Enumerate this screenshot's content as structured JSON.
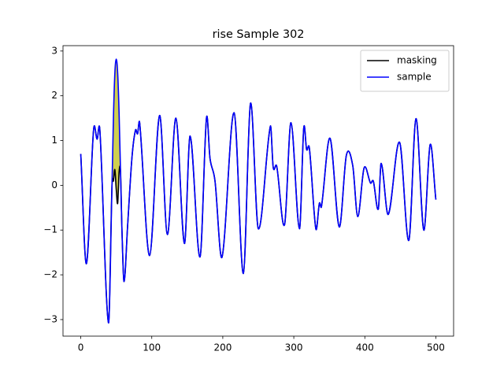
{
  "chart_data": {
    "type": "line",
    "title": "rise Sample 302",
    "x": [
      0,
      8,
      18,
      23,
      27,
      39,
      44,
      46,
      48,
      50,
      52,
      54,
      56,
      58,
      61,
      66,
      72,
      77,
      80,
      83,
      97,
      111,
      122,
      134,
      146,
      154,
      168,
      177,
      182,
      189,
      199,
      216,
      229,
      239,
      250,
      267,
      271,
      276,
      287,
      296,
      308,
      314,
      318,
      322,
      331,
      336,
      339,
      351,
      364,
      374,
      383,
      390,
      399,
      408,
      412,
      419,
      423,
      433,
      449,
      462,
      472,
      483,
      492,
      500
    ],
    "series": [
      {
        "name": "masking",
        "color": "#000000",
        "values": [
          0.7,
          -1.75,
          1.23,
          1.03,
          1.21,
          -3.07,
          0.0,
          0.1,
          0.35,
          -0.1,
          -0.4,
          0.3,
          0.3,
          -1.0,
          -2.15,
          -0.9,
          0.6,
          1.23,
          1.15,
          1.39,
          -1.57,
          1.56,
          -1.1,
          1.5,
          -1.3,
          1.1,
          -1.6,
          1.5,
          0.6,
          0.1,
          -1.6,
          1.62,
          -1.97,
          1.83,
          -0.97,
          1.32,
          0.4,
          0.42,
          -0.88,
          1.4,
          -0.97,
          1.28,
          0.8,
          0.82,
          -0.97,
          -0.4,
          -0.47,
          1.05,
          -0.93,
          0.67,
          0.44,
          -0.7,
          0.39,
          0.05,
          0.09,
          -0.53,
          0.49,
          -0.65,
          0.96,
          -1.23,
          1.49,
          -1.0,
          0.91,
          -0.32
        ]
      },
      {
        "name": "sample",
        "color": "#0000ff",
        "values": [
          0.7,
          -1.75,
          1.23,
          1.03,
          1.21,
          -3.07,
          0.0,
          1.5,
          2.5,
          2.82,
          2.5,
          1.6,
          0.3,
          -1.0,
          -2.15,
          -0.9,
          0.6,
          1.23,
          1.15,
          1.39,
          -1.57,
          1.56,
          -1.1,
          1.5,
          -1.3,
          1.1,
          -1.6,
          1.5,
          0.6,
          0.1,
          -1.6,
          1.62,
          -1.97,
          1.83,
          -0.97,
          1.32,
          0.4,
          0.42,
          -0.88,
          1.4,
          -0.97,
          1.28,
          0.8,
          0.82,
          -0.97,
          -0.4,
          -0.47,
          1.05,
          -0.93,
          0.67,
          0.44,
          -0.7,
          0.39,
          0.05,
          0.09,
          -0.53,
          0.49,
          -0.65,
          0.96,
          -1.23,
          1.49,
          -1.0,
          0.91,
          -0.32
        ]
      }
    ],
    "fill_color": "#cfcf4f",
    "xlim": [
      -25,
      525
    ],
    "xticks": [
      0,
      100,
      200,
      300,
      400,
      500
    ],
    "ylim": [
      -3.37,
      3.12
    ],
    "yticks": [
      {
        "value": -3,
        "label": "−3"
      },
      {
        "value": -2,
        "label": "−2"
      },
      {
        "value": -1,
        "label": "−1"
      },
      0,
      1,
      2,
      3
    ],
    "legend": "upper right"
  }
}
